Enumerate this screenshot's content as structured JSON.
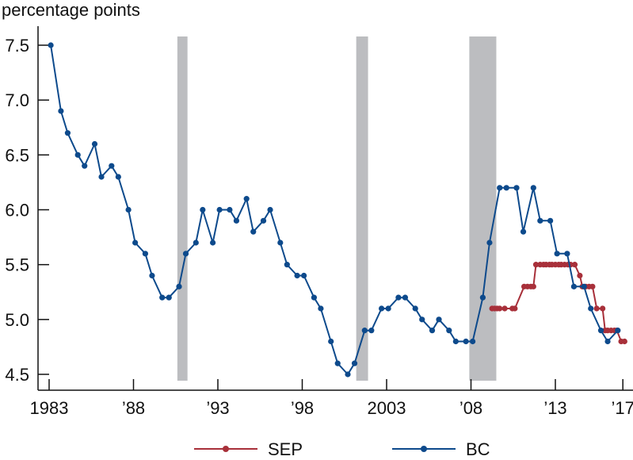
{
  "chart_data": {
    "type": "line",
    "title": "",
    "ylabel": "percentage points",
    "xlabel": "",
    "ylim": [
      4.5,
      7.5
    ],
    "yticks": [
      "7.5",
      "7.0",
      "6.5",
      "6.0",
      "5.5",
      "5.0",
      "4.5"
    ],
    "xticks": [
      {
        "label": "1983",
        "year": 1983
      },
      {
        "label": "’88",
        "year": 1988
      },
      {
        "label": "’93",
        "year": 1993
      },
      {
        "label": "’98",
        "year": 1998
      },
      {
        "label": "2003",
        "year": 2003
      },
      {
        "label": "’08",
        "year": 2008
      },
      {
        "label": "’13",
        "year": 2013
      },
      {
        "label": "’17",
        "year": 2017
      }
    ],
    "grid": false,
    "legend_position": "bottom",
    "recessions": [
      {
        "start": 1990.6,
        "end": 1991.2
      },
      {
        "start": 2001.2,
        "end": 2001.9
      },
      {
        "start": 2007.9,
        "end": 2009.5
      }
    ],
    "series": [
      {
        "name": "SEP",
        "color": "#a8303a",
        "x": [
          2009.25,
          2009.4,
          2009.55,
          2009.7,
          2010.0,
          2010.45,
          2010.6,
          2011.15,
          2011.35,
          2011.55,
          2011.7,
          2011.85,
          2012.1,
          2012.3,
          2012.45,
          2012.65,
          2012.8,
          2013.0,
          2013.2,
          2013.35,
          2013.55,
          2013.75,
          2013.9,
          2014.15,
          2014.45,
          2014.6,
          2014.8,
          2015.0,
          2015.2,
          2015.45,
          2015.8,
          2015.95,
          2016.1,
          2016.3,
          2016.5,
          2016.65,
          2016.9,
          2017.1
        ],
        "values": [
          5.1,
          5.1,
          5.1,
          5.1,
          5.1,
          5.1,
          5.1,
          5.3,
          5.3,
          5.3,
          5.3,
          5.5,
          5.5,
          5.5,
          5.5,
          5.5,
          5.5,
          5.5,
          5.5,
          5.5,
          5.5,
          5.5,
          5.5,
          5.5,
          5.4,
          5.3,
          5.3,
          5.3,
          5.3,
          5.1,
          5.1,
          4.9,
          4.9,
          4.9,
          4.9,
          4.9,
          4.8,
          4.8
        ]
      },
      {
        "name": "BC",
        "color": "#0d4a8c",
        "x": [
          1983.1,
          1983.7,
          1984.1,
          1984.7,
          1985.1,
          1985.7,
          1986.1,
          1986.7,
          1987.1,
          1987.7,
          1988.1,
          1988.7,
          1989.1,
          1989.7,
          1990.1,
          1990.7,
          1991.1,
          1991.7,
          1992.1,
          1992.7,
          1993.1,
          1993.7,
          1994.1,
          1994.7,
          1995.1,
          1995.7,
          1996.1,
          1996.7,
          1997.1,
          1997.7,
          1998.1,
          1998.7,
          1999.1,
          1999.7,
          2000.1,
          2000.7,
          2001.1,
          2001.7,
          2002.1,
          2002.7,
          2003.1,
          2003.7,
          2004.1,
          2004.7,
          2005.1,
          2005.7,
          2006.1,
          2006.7,
          2007.1,
          2007.7,
          2008.1,
          2008.7,
          2009.1,
          2009.7,
          2010.1,
          2010.7,
          2011.1,
          2011.7,
          2012.1,
          2012.7,
          2013.1,
          2013.7,
          2014.1,
          2014.7,
          2015.1,
          2015.7,
          2016.1,
          2016.7
        ],
        "values": [
          7.5,
          6.9,
          6.7,
          6.5,
          6.4,
          6.6,
          6.3,
          6.4,
          6.3,
          6.0,
          5.7,
          5.6,
          5.4,
          5.2,
          5.2,
          5.3,
          5.6,
          5.7,
          6.0,
          5.7,
          6.0,
          6.0,
          5.9,
          6.1,
          5.8,
          5.9,
          6.0,
          5.7,
          5.5,
          5.4,
          5.4,
          5.2,
          5.1,
          4.8,
          4.6,
          4.5,
          4.6,
          4.9,
          4.9,
          5.1,
          5.1,
          5.2,
          5.2,
          5.1,
          5.0,
          4.9,
          5.0,
          4.9,
          4.8,
          4.8,
          4.8,
          5.2,
          5.7,
          6.2,
          6.2,
          6.2,
          5.8,
          6.2,
          5.9,
          5.9,
          5.6,
          5.6,
          5.3,
          5.3,
          5.1,
          4.9,
          4.8,
          4.9
        ]
      }
    ]
  },
  "legend": {
    "items": [
      {
        "label": "SEP",
        "color": "#a8303a"
      },
      {
        "label": "BC",
        "color": "#0d4a8c"
      }
    ]
  },
  "colors": {
    "recession": "#bcbdc0",
    "axis": "#111111"
  }
}
